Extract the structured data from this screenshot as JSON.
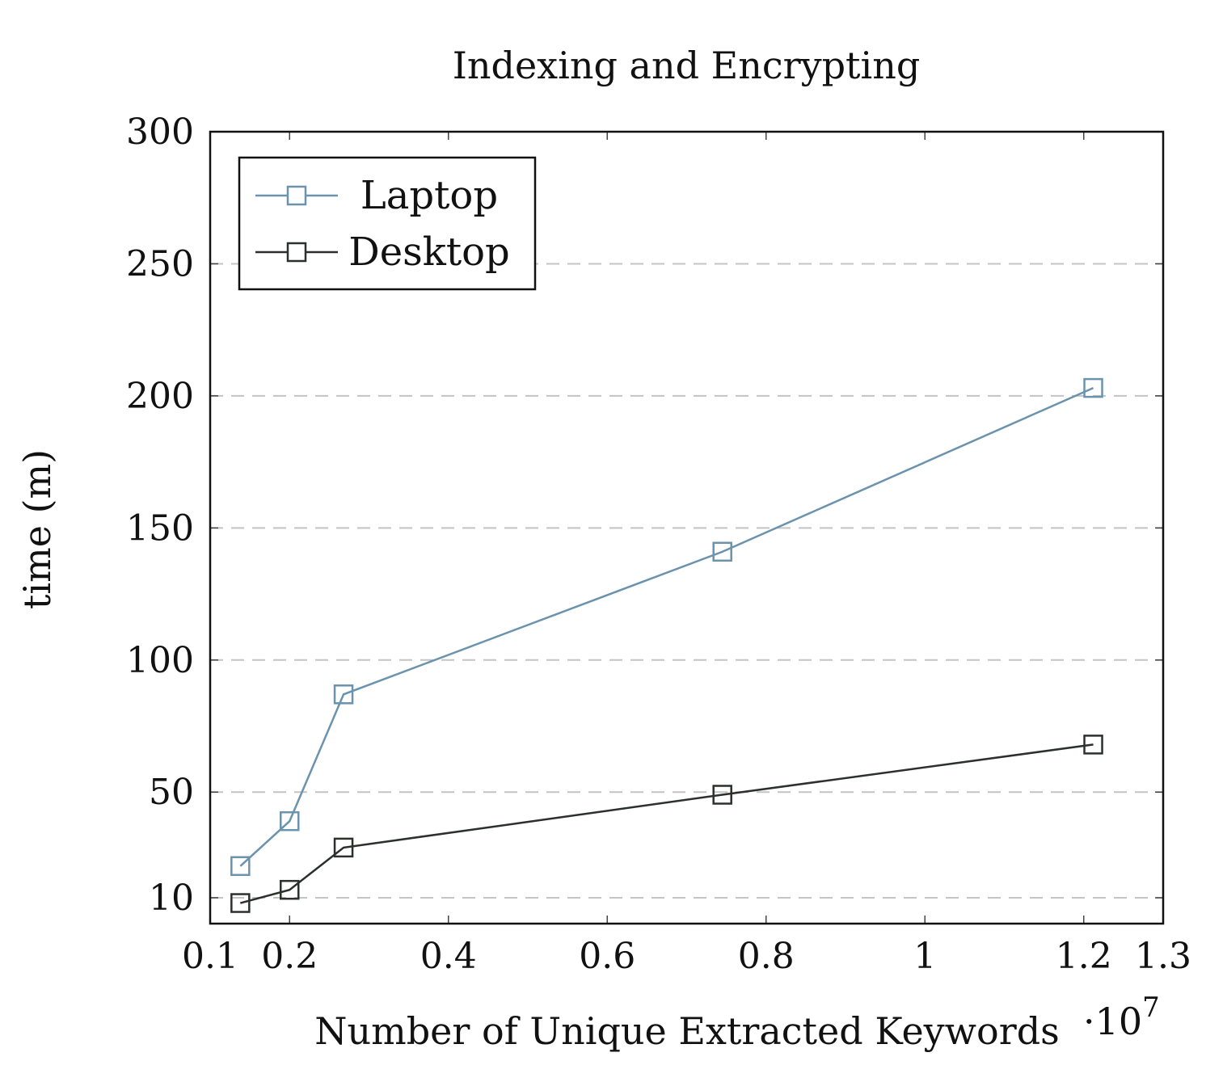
{
  "chart_data": {
    "type": "line",
    "title": "Indexing and Encrypting",
    "xlabel": "Number of Unique Extracted Keywords",
    "x_scale_label": "·10",
    "x_scale_exponent": "7",
    "ylabel": "time (m)",
    "xlim": [
      0.1,
      1.3
    ],
    "ylim": [
      0,
      300
    ],
    "xticks": [
      0.1,
      0.2,
      0.4,
      0.6,
      0.8,
      1,
      1.2,
      1.3
    ],
    "xtick_labels": [
      "0.1",
      "0.2",
      "0.4",
      "0.6",
      "0.8",
      "1",
      "1.2",
      "1.3"
    ],
    "yticks": [
      10,
      50,
      100,
      150,
      200,
      250,
      300
    ],
    "ytick_labels": [
      "10",
      "50",
      "100",
      "150",
      "200",
      "250",
      "300"
    ],
    "grid": "horizontal dashed",
    "legend": "top-left",
    "series": [
      {
        "name": "Laptop",
        "color": "#6b93ad",
        "marker": "square",
        "x": [
          0.138,
          0.2,
          0.268,
          0.745,
          1.212
        ],
        "y": [
          22,
          39,
          87,
          141,
          203
        ]
      },
      {
        "name": "Desktop",
        "color": "#2b302d",
        "marker": "square",
        "x": [
          0.138,
          0.2,
          0.268,
          0.745,
          1.212
        ],
        "y": [
          8,
          13,
          29,
          49,
          68
        ]
      }
    ]
  }
}
